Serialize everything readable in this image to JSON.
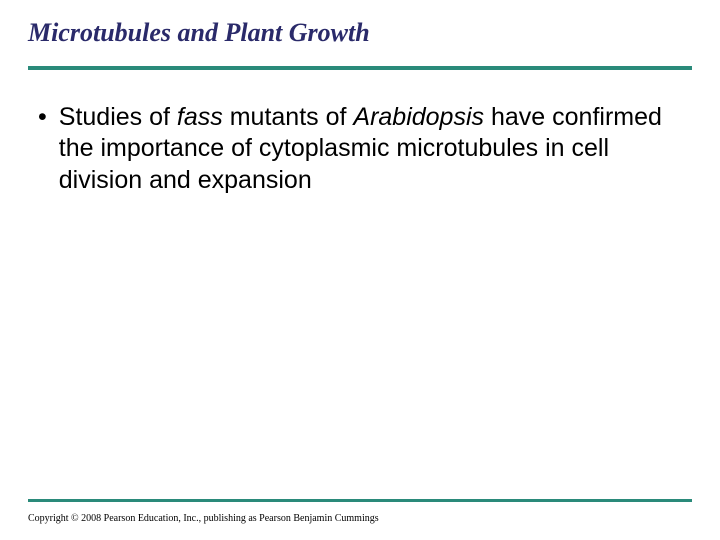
{
  "slide": {
    "title": "Microtubules and Plant Growth",
    "title_color": "#2a2a6a",
    "title_fontsize": 26,
    "underline_color": "#2a8a7a",
    "bullet": {
      "marker": "•",
      "prefix": "Studies of ",
      "italic1": "fass",
      "mid1": " mutants of ",
      "italic2": "Arabidopsis",
      "suffix": " have confirmed the importance of cytoplasmic microtubules in cell division and expansion"
    },
    "body_fontsize": 25,
    "body_color": "#000000",
    "copyright": "Copyright © 2008 Pearson Education, Inc., publishing as Pearson Benjamin Cummings",
    "background_color": "#ffffff"
  }
}
